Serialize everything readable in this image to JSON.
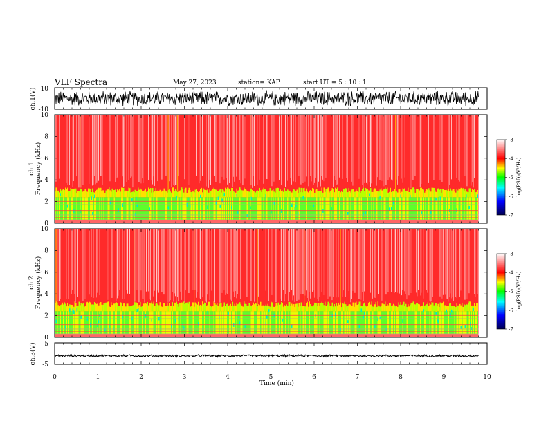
{
  "header": {
    "title": "VLF Spectra",
    "date": "May 27, 2023",
    "station": "station= KAP",
    "start": "start  UT =  5 : 10 : 1"
  },
  "chart_data": [
    {
      "type": "line",
      "panel": "ch1-waveform",
      "ylabel": "ch.1(V)",
      "y_ticks": [
        10,
        -10
      ],
      "ylim": [
        -10,
        10
      ],
      "xlim": [
        0,
        10
      ],
      "description_values": "dense noise trace centered near 0 V, amplitude about ±8 V"
    },
    {
      "type": "heatmap",
      "panel": "ch1-spectrogram",
      "ylabel_top": "ch.1",
      "ylabel": "Frequency (kHz)",
      "y_ticks": [
        0,
        2,
        4,
        6,
        8,
        10
      ],
      "ylim": [
        0,
        10
      ],
      "xlim": [
        0,
        10
      ],
      "colorbar": {
        "label": "log(PSD)(V²/Hz)",
        "ticks": [
          -3,
          -4,
          -5,
          -6,
          -7
        ],
        "range": [
          -7,
          -3
        ]
      }
    },
    {
      "type": "heatmap",
      "panel": "ch2-spectrogram",
      "ylabel_top": "ch.2",
      "ylabel": "Frequency (kHz)",
      "y_ticks": [
        0,
        2,
        4,
        6,
        8,
        10
      ],
      "ylim": [
        0,
        10
      ],
      "xlim": [
        0,
        10
      ],
      "colorbar": {
        "label": "log(PSD)(V²/Hz)",
        "ticks": [
          -3,
          -4,
          -5,
          -6,
          -7
        ],
        "range": [
          -7,
          -3
        ]
      }
    },
    {
      "type": "line",
      "panel": "ch3-waveform",
      "ylabel": "ch.3(V)",
      "y_ticks": [
        5,
        -5
      ],
      "ylim": [
        -5,
        5
      ],
      "xlim": [
        0,
        10
      ],
      "description_values": "nearly flat trace near -1 V"
    }
  ],
  "xaxis": {
    "label": "Time  (min)",
    "ticks": [
      "0",
      "1",
      "2",
      "3",
      "4",
      "5",
      "6",
      "7",
      "8",
      "9",
      "10"
    ],
    "data_end_min": 9.8
  },
  "colors": {
    "trace": "#000000",
    "colormap": [
      "#000050",
      "#0000ff",
      "#00ffff",
      "#00ff00",
      "#ffff00",
      "#ff0000",
      "#ffffff"
    ]
  }
}
